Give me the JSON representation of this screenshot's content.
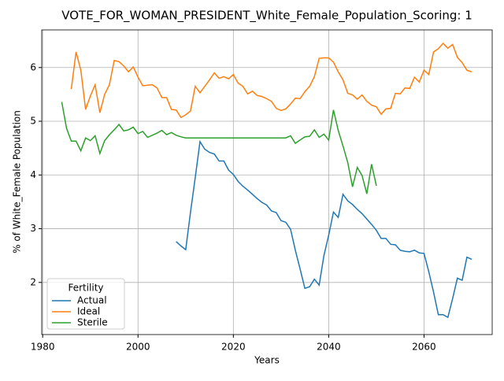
{
  "chart_data": {
    "type": "line",
    "title": "VOTE_FOR_WOMAN_PRESIDENT_White_Female_Population_Scoring: 1",
    "xlabel": "Years",
    "ylabel": "% of White_Female Population",
    "x": [
      1984,
      1985,
      1986,
      1987,
      1988,
      1989,
      1990,
      1991,
      1992,
      1993,
      1994,
      1995,
      1996,
      1997,
      1998,
      1999,
      2000,
      2001,
      2002,
      2003,
      2004,
      2005,
      2006,
      2007,
      2008,
      2009,
      2010,
      2011,
      2012,
      2013,
      2014,
      2015,
      2016,
      2017,
      2018,
      2019,
      2020,
      2021,
      2022,
      2023,
      2024,
      2025,
      2026,
      2027,
      2028,
      2029,
      2030,
      2031,
      2032,
      2033,
      2034,
      2035,
      2036,
      2037,
      2038,
      2039,
      2040,
      2041,
      2042,
      2043,
      2044,
      2045,
      2046,
      2047,
      2048,
      2049,
      2050,
      2051,
      2052,
      2053,
      2054,
      2055,
      2056,
      2057,
      2058,
      2059,
      2060,
      2061,
      2062,
      2063,
      2064,
      2065,
      2066,
      2067,
      2068,
      2069,
      2070
    ],
    "series": [
      {
        "name": "Actual",
        "color": "#1f77b4",
        "values": [
          null,
          null,
          null,
          null,
          null,
          null,
          null,
          null,
          null,
          null,
          null,
          null,
          null,
          null,
          null,
          null,
          null,
          null,
          null,
          null,
          null,
          null,
          null,
          null,
          2.76,
          2.68,
          2.61,
          3.3,
          3.95,
          4.62,
          4.48,
          4.42,
          4.39,
          4.26,
          4.26,
          4.09,
          4.01,
          3.88,
          3.79,
          3.72,
          3.64,
          3.56,
          3.49,
          3.44,
          3.33,
          3.3,
          3.15,
          3.12,
          2.99,
          2.6,
          2.25,
          1.89,
          1.92,
          2.06,
          1.95,
          2.5,
          2.88,
          3.31,
          3.21,
          3.64,
          3.52,
          3.45,
          3.36,
          3.28,
          3.18,
          3.08,
          2.97,
          2.82,
          2.82,
          2.71,
          2.7,
          2.6,
          2.58,
          2.57,
          2.6,
          2.55,
          2.54,
          2.2,
          1.82,
          1.4,
          1.4,
          1.35,
          1.7,
          2.08,
          2.04,
          2.47,
          2.43
        ]
      },
      {
        "name": "Ideal",
        "color": "#ff7f0e",
        "values": [
          null,
          null,
          5.6,
          6.29,
          5.95,
          5.22,
          5.47,
          5.68,
          5.16,
          5.5,
          5.68,
          6.13,
          6.11,
          6.03,
          5.92,
          6.01,
          5.82,
          5.66,
          5.67,
          5.68,
          5.62,
          5.44,
          5.44,
          5.22,
          5.21,
          5.07,
          5.12,
          5.19,
          5.65,
          5.53,
          5.65,
          5.77,
          5.9,
          5.8,
          5.83,
          5.79,
          5.87,
          5.71,
          5.65,
          5.51,
          5.56,
          5.48,
          5.46,
          5.42,
          5.37,
          5.24,
          5.2,
          5.23,
          5.32,
          5.43,
          5.42,
          5.55,
          5.65,
          5.83,
          6.17,
          6.18,
          6.18,
          6.1,
          5.92,
          5.77,
          5.52,
          5.49,
          5.41,
          5.49,
          5.37,
          5.3,
          5.27,
          5.13,
          5.23,
          5.24,
          5.52,
          5.51,
          5.62,
          5.61,
          5.82,
          5.73,
          5.95,
          5.87,
          6.29,
          6.35,
          6.45,
          6.36,
          6.43,
          6.19,
          6.09,
          5.95,
          5.92
        ]
      },
      {
        "name": "Sterile",
        "color": "#2ca02c",
        "values": [
          5.36,
          4.87,
          4.63,
          4.63,
          4.45,
          4.69,
          4.64,
          4.73,
          4.4,
          4.64,
          4.75,
          4.84,
          4.94,
          4.82,
          4.84,
          4.89,
          4.77,
          4.81,
          4.7,
          4.74,
          4.78,
          4.83,
          4.75,
          4.79,
          4.74,
          4.71,
          4.69,
          4.69,
          4.69,
          4.69,
          4.69,
          4.69,
          4.69,
          4.69,
          4.69,
          4.69,
          4.69,
          4.69,
          4.69,
          4.69,
          4.69,
          4.69,
          4.69,
          4.69,
          4.69,
          4.69,
          4.69,
          4.69,
          4.73,
          4.59,
          4.65,
          4.71,
          4.72,
          4.84,
          4.7,
          4.76,
          4.65,
          5.21,
          4.83,
          4.54,
          4.23,
          3.78,
          4.14,
          3.99,
          3.65,
          4.2,
          3.8,
          null,
          null,
          null,
          null,
          null,
          null,
          null,
          null,
          null,
          null,
          null,
          null,
          null,
          null,
          null,
          null,
          null,
          null,
          null,
          null
        ]
      }
    ],
    "xlim": [
      1979.8,
      2074.3
    ],
    "xticks": [
      1980,
      2000,
      2020,
      2040,
      2060
    ],
    "ylim": [
      1.03,
      6.7
    ],
    "yticks": [
      2,
      3,
      4,
      5,
      6
    ],
    "grid": true,
    "legend_title": "Fertility",
    "legend_position": "lower left"
  }
}
